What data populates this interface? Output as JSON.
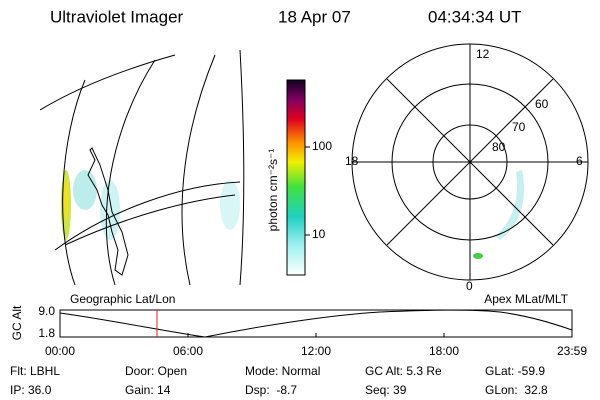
{
  "header": {
    "instrument": "Ultraviolet Imager",
    "date": "18 Apr 07",
    "time": "04:34:34 UT"
  },
  "colorbar": {
    "label": "photon cm⁻²s⁻¹",
    "tick_labels": [
      "100",
      "10"
    ]
  },
  "polar": {
    "mlt_labels": [
      "12",
      "18",
      "6",
      "0"
    ],
    "lat_labels": [
      "60",
      "70",
      "80"
    ]
  },
  "strip": {
    "left_title": "Geographic Lat/Lon",
    "right_title": "Apex MLat/MLT",
    "axis_label": "GC Alt",
    "y_labels": [
      "9.0",
      "1.8"
    ],
    "time_labels": [
      "00:00",
      "06:00",
      "12:00",
      "18:00",
      "23:59"
    ]
  },
  "info": {
    "rows": [
      [
        "Flt: LBHL",
        "Door: Open",
        "Mode: Normal",
        "GC Alt: 5.3 Re",
        "GLat: -59.9"
      ],
      [
        "IP: 36.0",
        "Gain: 14",
        "Dsp:  -8.7",
        "Seq: 39",
        "GLon:  32.8"
      ]
    ]
  }
}
